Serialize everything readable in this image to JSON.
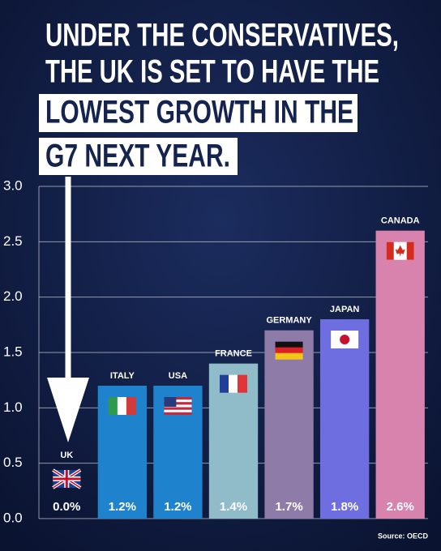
{
  "chart_data": {
    "type": "bar",
    "title": [
      "UNDER THE CONSERVATIVES,",
      "THE UK IS SET TO HAVE THE",
      "LOWEST GROWTH IN THE",
      "G7 NEXT YEAR."
    ],
    "categories": [
      "UK",
      "ITALY",
      "USA",
      "FRANCE",
      "GERMANY",
      "JAPAN",
      "CANADA"
    ],
    "values": [
      0.0,
      1.2,
      1.2,
      1.4,
      1.7,
      1.8,
      2.6
    ],
    "value_labels": [
      "0.0%",
      "1.2%",
      "1.2%",
      "1.4%",
      "1.7%",
      "1.8%",
      "2.6%"
    ],
    "colors": [
      "#2a3f7a",
      "#1f82cc",
      "#1f82cc",
      "#8fbcc8",
      "#8f7ba8",
      "#6e6ee0",
      "#d883ae"
    ],
    "ylim": [
      0,
      3
    ],
    "yticks": [
      {
        "value": 0,
        "label": "0.0"
      },
      0.5,
      {
        "value": 1,
        "label": "1.0"
      },
      1.5,
      {
        "value": 2,
        "label": "2.0"
      },
      2.5,
      {
        "value": 3,
        "label": "3.0"
      }
    ],
    "grid": true,
    "source": "Source: OECD"
  }
}
